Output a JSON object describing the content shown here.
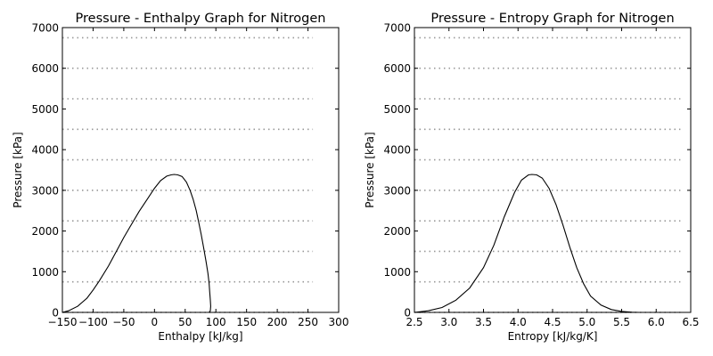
{
  "chart_data": [
    {
      "type": "line",
      "title": "Pressure - Enthalpy Graph for Nitrogen",
      "xlabel": "Enthalpy [kJ/kg]",
      "ylabel": "Pressure [kPa]",
      "xlim": [
        -150,
        300
      ],
      "ylim": [
        0,
        7000
      ],
      "xticks": [
        -150,
        -100,
        -50,
        0,
        50,
        100,
        150,
        200,
        250,
        300
      ],
      "xtick_labels": [
        "−150",
        "−100",
        "−50",
        "0",
        "50",
        "100",
        "150",
        "200",
        "250",
        "300"
      ],
      "yticks": [
        0,
        1000,
        2000,
        3000,
        4000,
        5000,
        6000,
        7000
      ],
      "ytick_labels": [
        "0",
        "1000",
        "2000",
        "3000",
        "4000",
        "5000",
        "6000",
        "7000"
      ],
      "grid": false,
      "isobars": {
        "pressures": [
          0,
          750,
          1500,
          2250,
          3000,
          3750,
          4500,
          5250,
          6000,
          6750
        ],
        "x_range": [
          -150,
          258
        ]
      },
      "series": [
        {
          "x": [
            -150,
            -140,
            -125,
            -110,
            -100,
            -90,
            -75,
            -60,
            -50,
            -40,
            -25,
            -10,
            0,
            10,
            20,
            27,
            32,
            38,
            45,
            52,
            58,
            63,
            68,
            72,
            76,
            80,
            84,
            87,
            89,
            90,
            91,
            91.5,
            91,
            89
          ],
          "y": [
            0,
            40,
            150,
            350,
            550,
            770,
            1140,
            1560,
            1840,
            2100,
            2480,
            2820,
            3050,
            3240,
            3350,
            3380,
            3390,
            3380,
            3340,
            3200,
            3000,
            2780,
            2500,
            2220,
            1920,
            1600,
            1250,
            960,
            720,
            500,
            300,
            150,
            40,
            0
          ]
        }
      ]
    },
    {
      "type": "line",
      "title": "Pressure - Entropy Graph for Nitrogen",
      "xlabel": "Entropy [kJ/kg/K]",
      "ylabel": "Pressure [kPa]",
      "xlim": [
        2.5,
        6.5
      ],
      "ylim": [
        0,
        7000
      ],
      "xticks": [
        2.5,
        3.0,
        3.5,
        4.0,
        4.5,
        5.0,
        5.5,
        6.0,
        6.5
      ],
      "xtick_labels": [
        "2.5",
        "3.0",
        "3.5",
        "4.0",
        "4.5",
        "5.0",
        "5.5",
        "6.0",
        "6.5"
      ],
      "yticks": [
        0,
        1000,
        2000,
        3000,
        4000,
        5000,
        6000,
        7000
      ],
      "ytick_labels": [
        "0",
        "1000",
        "2000",
        "3000",
        "4000",
        "5000",
        "6000",
        "7000"
      ],
      "grid": false,
      "isobars": {
        "pressures": [
          0,
          750,
          1500,
          2250,
          3000,
          3750,
          4500,
          5250,
          6000,
          6750
        ],
        "x_range": [
          2.5,
          6.35
        ]
      },
      "series": [
        {
          "x": [
            2.5,
            2.7,
            2.9,
            3.1,
            3.3,
            3.5,
            3.65,
            3.8,
            3.95,
            4.05,
            4.15,
            4.2,
            4.27,
            4.35,
            4.45,
            4.55,
            4.65,
            4.75,
            4.85,
            4.95,
            5.05,
            5.2,
            5.35,
            5.5,
            5.65,
            5.75
          ],
          "y": [
            0,
            40,
            120,
            300,
            600,
            1100,
            1650,
            2350,
            2950,
            3250,
            3380,
            3390,
            3380,
            3300,
            3050,
            2650,
            2150,
            1600,
            1100,
            700,
            400,
            180,
            70,
            25,
            5,
            0
          ]
        }
      ]
    }
  ]
}
